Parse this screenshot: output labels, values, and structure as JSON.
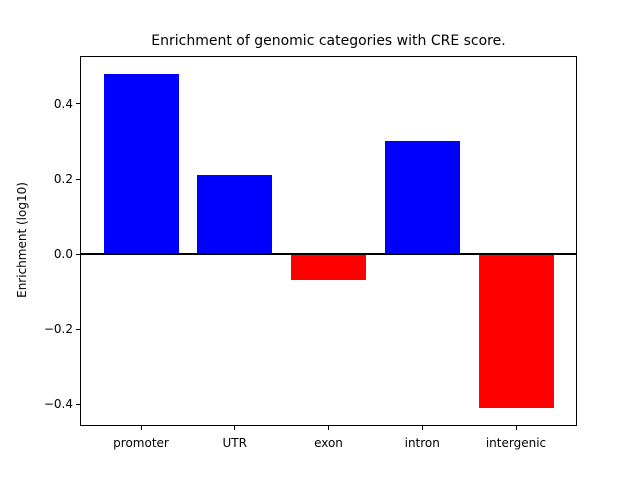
{
  "chart_data": {
    "type": "bar",
    "title": "Enrichment of genomic categories with CRE score.",
    "xlabel": "",
    "ylabel": "Enrichment (log10)",
    "categories": [
      "promoter",
      "UTR",
      "exon",
      "intron",
      "intergenic"
    ],
    "values": [
      0.48,
      0.21,
      -0.07,
      0.3,
      -0.41
    ],
    "bar_colors": [
      "#0000ff",
      "#0000ff",
      "#ff0000",
      "#0000ff",
      "#ff0000"
    ],
    "positive_color": "#0000ff",
    "negative_color": "#ff0000",
    "ylim": [
      -0.455,
      0.525
    ],
    "xlim": [
      -0.64,
      4.64
    ],
    "bar_width": 0.8,
    "yticks": [
      0.4,
      0.2,
      0.0,
      -0.2,
      -0.4
    ],
    "ytick_labels": [
      "0.4",
      "0.2",
      "0.0",
      "−0.2",
      "−0.4"
    ],
    "grid": false,
    "legend": null,
    "zero_line": true,
    "frame_color": "#000000",
    "background_color": "#ffffff"
  }
}
